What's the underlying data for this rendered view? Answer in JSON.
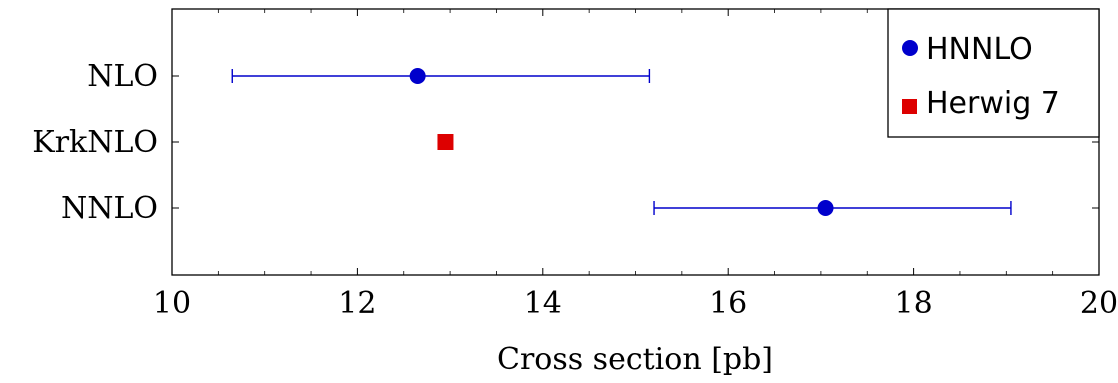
{
  "chart_data": {
    "type": "scatter",
    "xlabel": "Cross section [pb]",
    "ylabel": "",
    "xlim": [
      10,
      20
    ],
    "x_ticks": [
      "10",
      "12",
      "14",
      "16",
      "18",
      "20"
    ],
    "x_tick_values": [
      10,
      12,
      14,
      16,
      18,
      20
    ],
    "categories": [
      "NLO",
      "KrkNLO",
      "NNLO"
    ],
    "grid": false,
    "legend_position": "top-right",
    "series": [
      {
        "name": "HNNLO",
        "marker": "circle",
        "color": "#0000cc",
        "points": [
          {
            "category": "NLO",
            "x": 12.65,
            "xerr_low": 10.65,
            "xerr_high": 15.15
          },
          {
            "category": "NNLO",
            "x": 17.05,
            "xerr_low": 15.2,
            "xerr_high": 19.05
          }
        ]
      },
      {
        "name": "Herwig 7",
        "marker": "square",
        "color": "#dd0000",
        "points": [
          {
            "category": "KrkNLO",
            "x": 12.95
          }
        ]
      }
    ]
  }
}
